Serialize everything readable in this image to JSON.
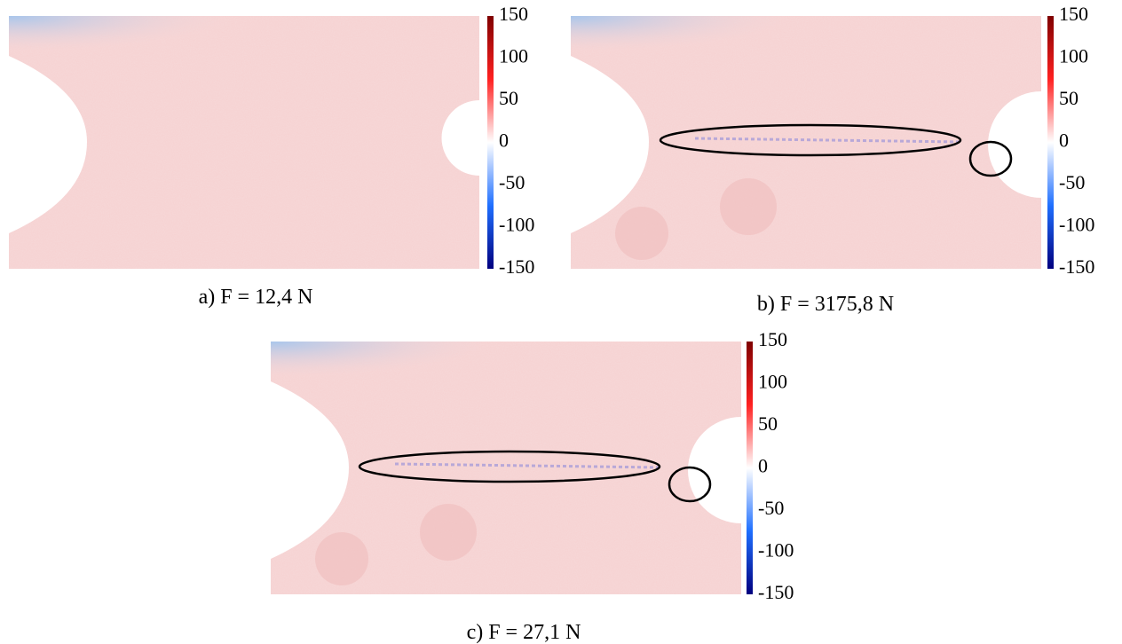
{
  "panels": [
    {
      "caption": "a) F = 12,4 N",
      "colorbar": {
        "ticks": [
          150,
          100,
          50,
          0,
          -50,
          -100,
          -150
        ]
      }
    },
    {
      "caption": "b) F = 3175,8 N",
      "colorbar": {
        "ticks": [
          150,
          100,
          50,
          0,
          -50,
          -100,
          -150
        ]
      }
    },
    {
      "caption": "c) F = 27,1 N",
      "colorbar": {
        "ticks": [
          150,
          100,
          50,
          0,
          -50,
          -100,
          -150
        ]
      }
    }
  ]
}
